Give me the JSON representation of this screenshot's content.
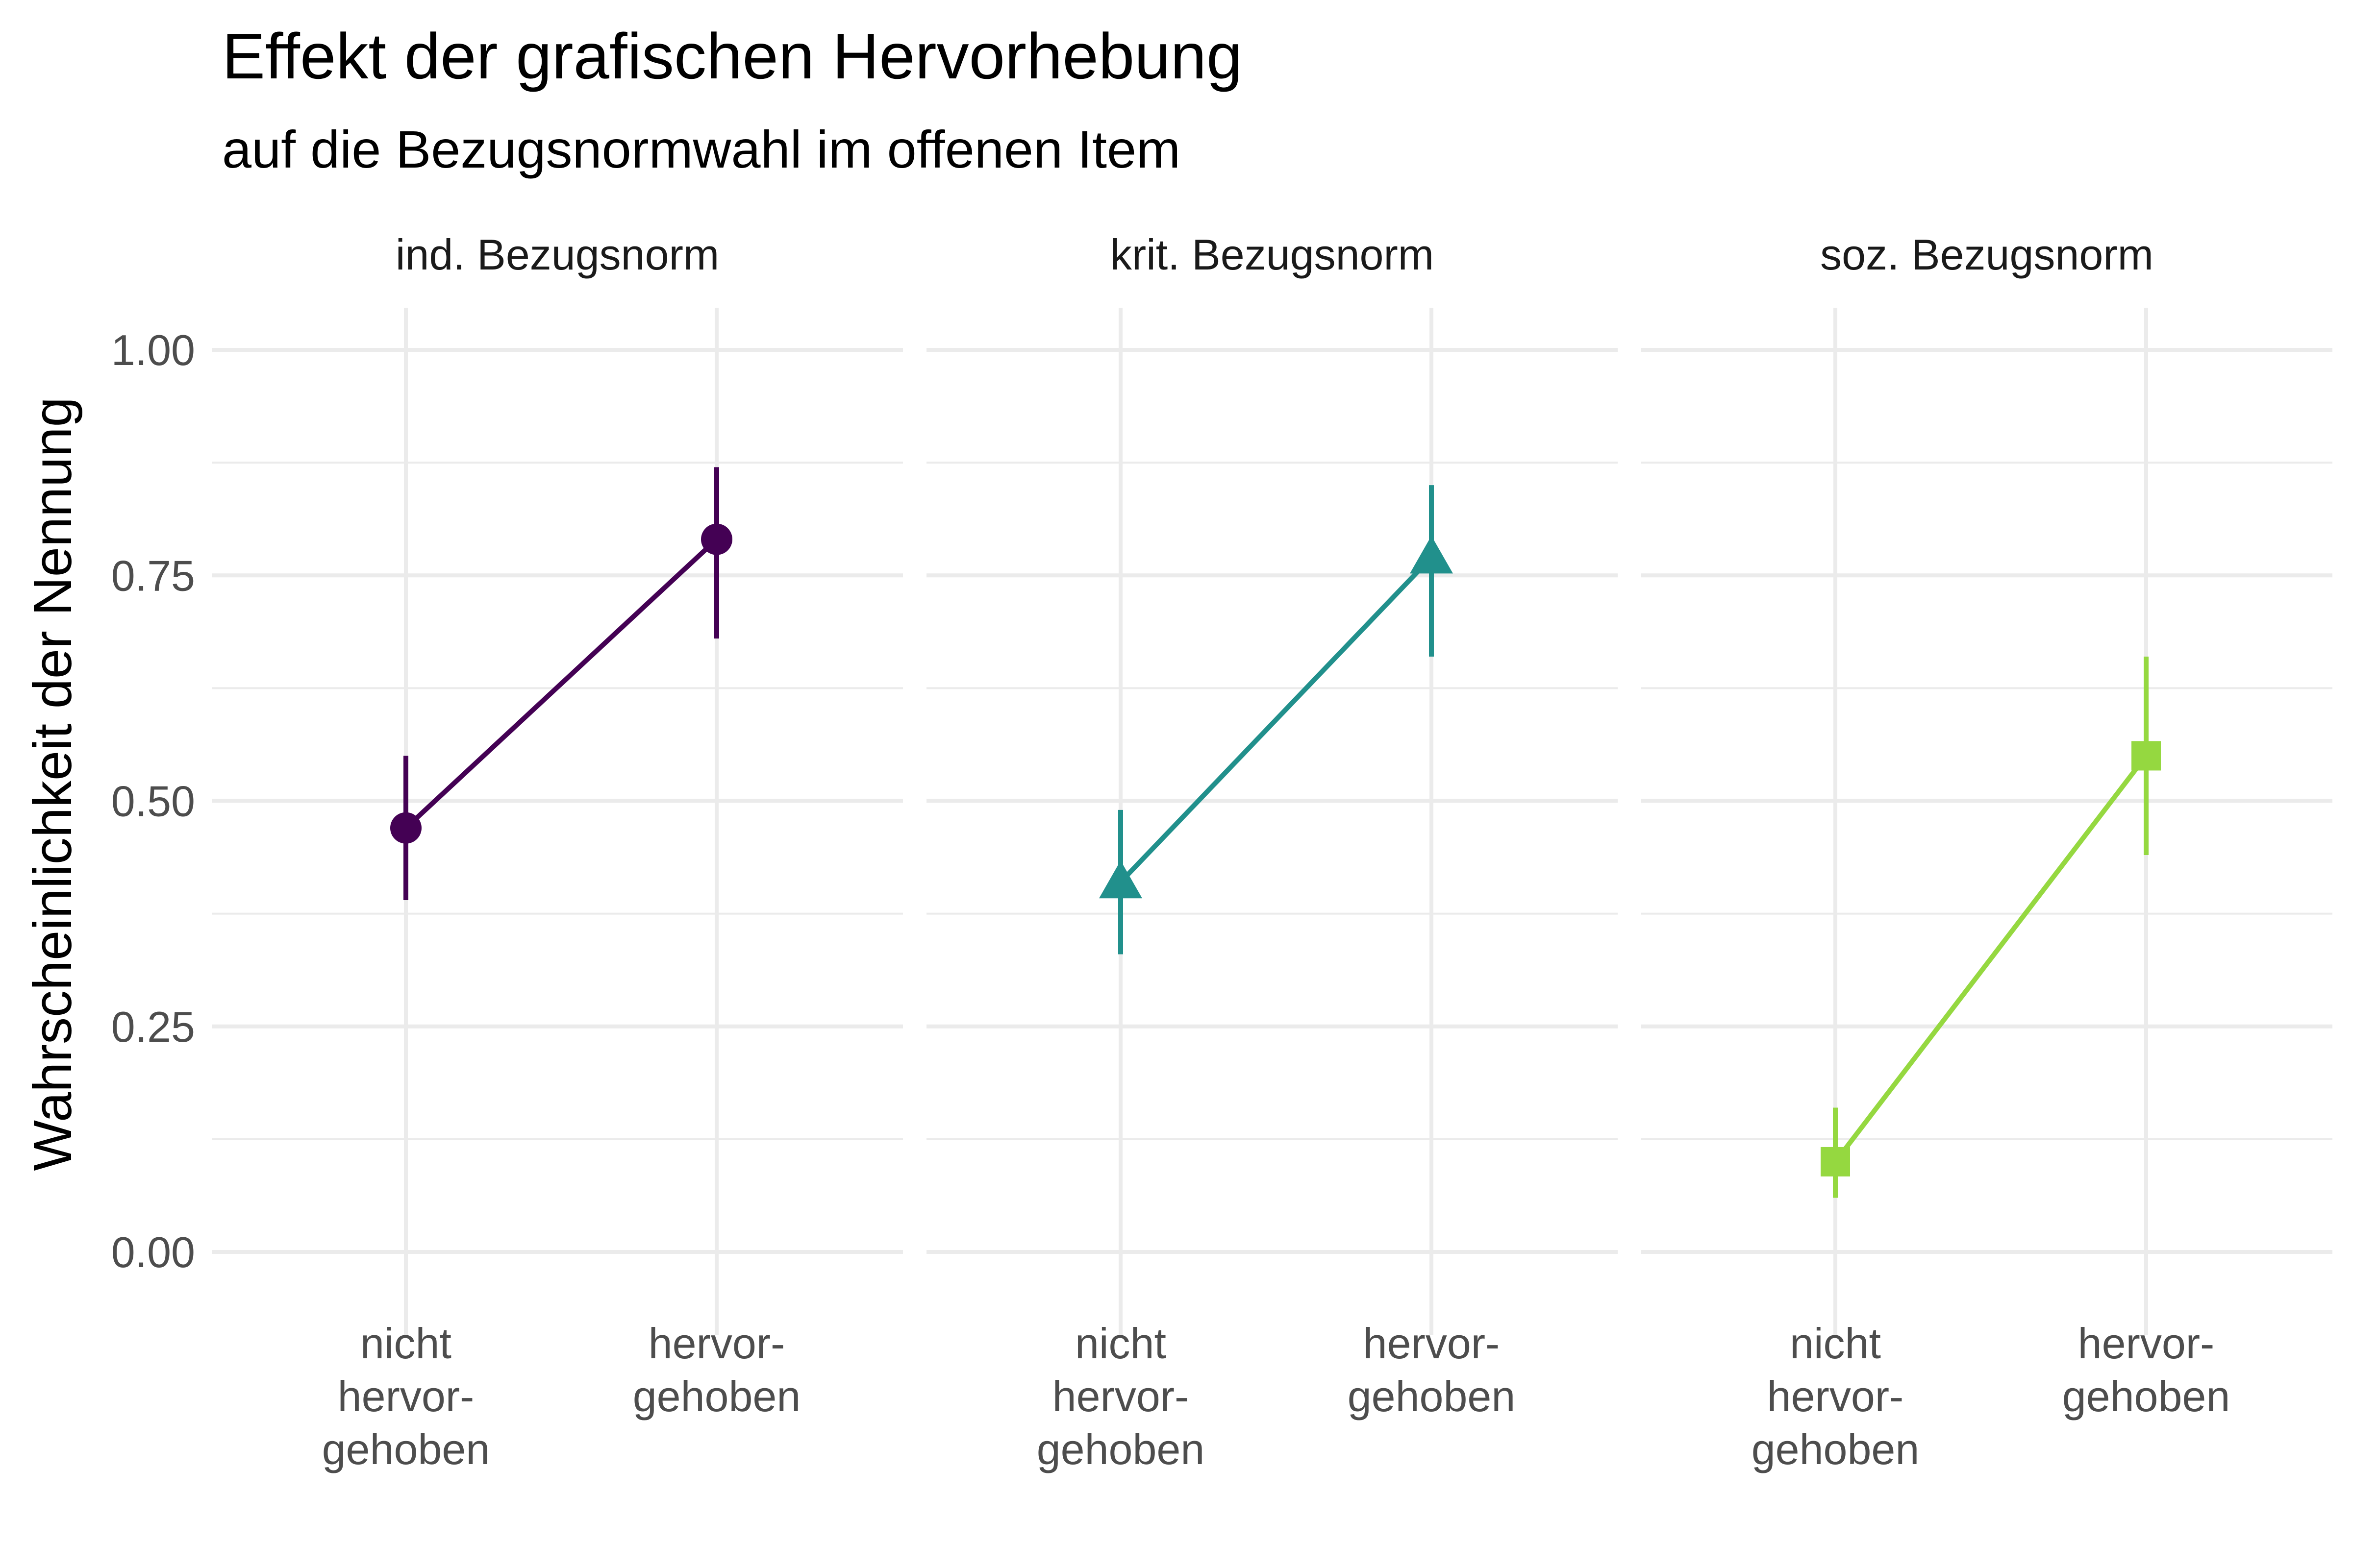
{
  "chart_data": {
    "type": "line",
    "title": "Effekt der grafischen Hervorhebung",
    "subtitle": "auf die Bezugsnormwahl im offenen Item",
    "ylabel": "Wahrscheinlichkeit der Nennung",
    "xlabel": "",
    "ylim": [
      0,
      1
    ],
    "yticks": [
      "0.00",
      "0.25",
      "0.50",
      "0.75",
      "1.00"
    ],
    "grid": true,
    "legend": "none",
    "categories": [
      [
        "nicht",
        "hervor-",
        "gehoben"
      ],
      [
        "hervor-",
        "gehoben"
      ]
    ],
    "panels": [
      {
        "name": "ind. Bezugsnorm",
        "color": "#440154",
        "marker": "circle",
        "values": [
          0.47,
          0.79
        ],
        "lower": [
          0.39,
          0.68
        ],
        "upper": [
          0.55,
          0.87
        ]
      },
      {
        "name": "krit. Bezugsnorm",
        "color": "#21908C",
        "marker": "triangle",
        "values": [
          0.41,
          0.77
        ],
        "lower": [
          0.33,
          0.66
        ],
        "upper": [
          0.49,
          0.85
        ]
      },
      {
        "name": "soz. Bezugsnorm",
        "color": "#95D840",
        "marker": "square",
        "values": [
          0.1,
          0.55
        ],
        "lower": [
          0.06,
          0.44
        ],
        "upper": [
          0.16,
          0.66
        ]
      }
    ]
  }
}
